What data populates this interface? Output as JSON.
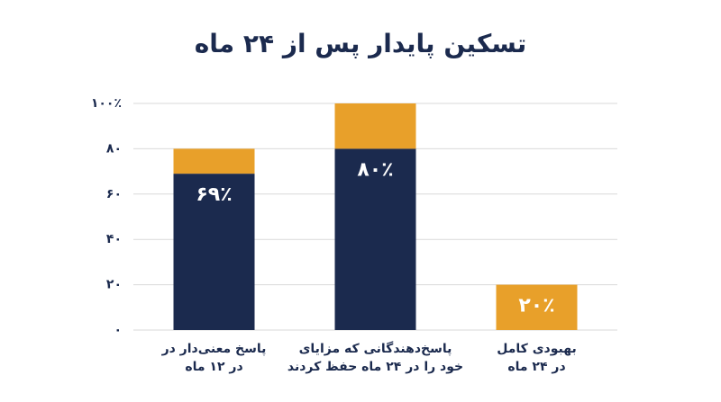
{
  "chart_data": {
    "type": "stacked_bar",
    "title": "تسکین پایدار پس از ۲۴ ماه",
    "categories": [
      "پاسخ معنی‌دار در\nدر ۱۲ ماه",
      "پاسخ‌دهندگانی که مزایای\nخود را در ۲۴ ماه حفظ کردند",
      "بهبودی کامل\nدر ۲۴ ماه"
    ],
    "series": [
      {
        "color": "#1b2a4e",
        "values": [
          69,
          80,
          0
        ],
        "value_labels": [
          "۶۹٪",
          "۸۰٪",
          null
        ]
      },
      {
        "color": "#e8a02a",
        "values": [
          11,
          20,
          20
        ],
        "value_labels": [
          null,
          null,
          "۲۰٪"
        ]
      }
    ],
    "ylim": [
      0,
      100
    ],
    "yticks": [
      {
        "value": 0,
        "label": "۰"
      },
      {
        "value": 20,
        "label": "۲۰"
      },
      {
        "value": 40,
        "label": "۴۰"
      },
      {
        "value": 60,
        "label": "۶۰"
      },
      {
        "value": 80,
        "label": "۸۰"
      },
      {
        "value": 100,
        "label": "۱۰۰٪"
      }
    ],
    "grid": true
  }
}
